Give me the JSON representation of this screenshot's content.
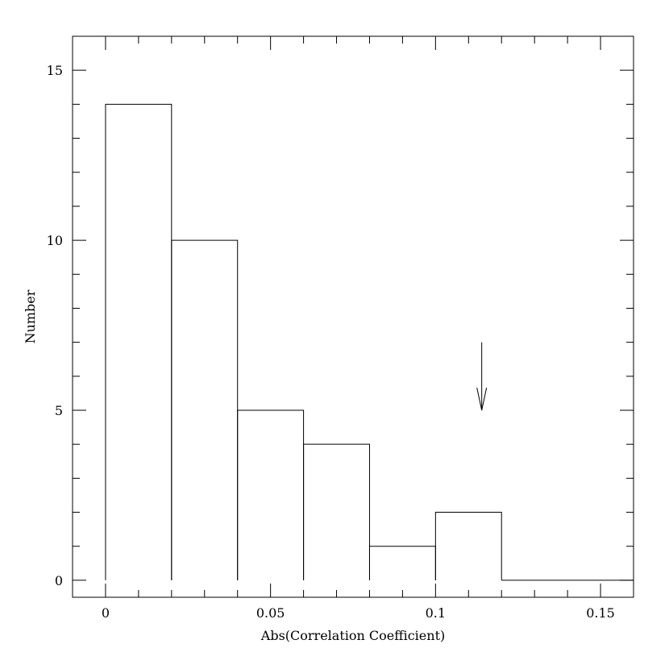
{
  "chart_data": {
    "type": "bar",
    "title": "",
    "xlabel": "Abs(Correlation Coefficient)",
    "ylabel": "Number",
    "xlim": [
      -0.01,
      0.16
    ],
    "ylim": [
      -0.5,
      16
    ],
    "x_ticks": [
      {
        "value": 0,
        "label": "0"
      },
      {
        "value": 0.05,
        "label": "0.05"
      },
      {
        "value": 0.1,
        "label": "0.1"
      },
      {
        "value": 0.15,
        "label": "0.15"
      }
    ],
    "y_ticks": [
      {
        "value": 0,
        "label": "0"
      },
      {
        "value": 5,
        "label": "5"
      },
      {
        "value": 10,
        "label": "10"
      },
      {
        "value": 15,
        "label": "15"
      }
    ],
    "bins": [
      {
        "x0": 0.0,
        "x1": 0.02,
        "count": 14
      },
      {
        "x0": 0.02,
        "x1": 0.04,
        "count": 10
      },
      {
        "x0": 0.04,
        "x1": 0.06,
        "count": 5
      },
      {
        "x0": 0.06,
        "x1": 0.08,
        "count": 4
      },
      {
        "x0": 0.08,
        "x1": 0.1,
        "count": 1
      },
      {
        "x0": 0.1,
        "x1": 0.12,
        "count": 2
      },
      {
        "x0": 0.12,
        "x1": 0.16,
        "count": 0
      }
    ],
    "annotation_arrow": {
      "x": 0.114,
      "y_start": 7,
      "y_end": 5
    },
    "grid": false,
    "legend": "none"
  }
}
